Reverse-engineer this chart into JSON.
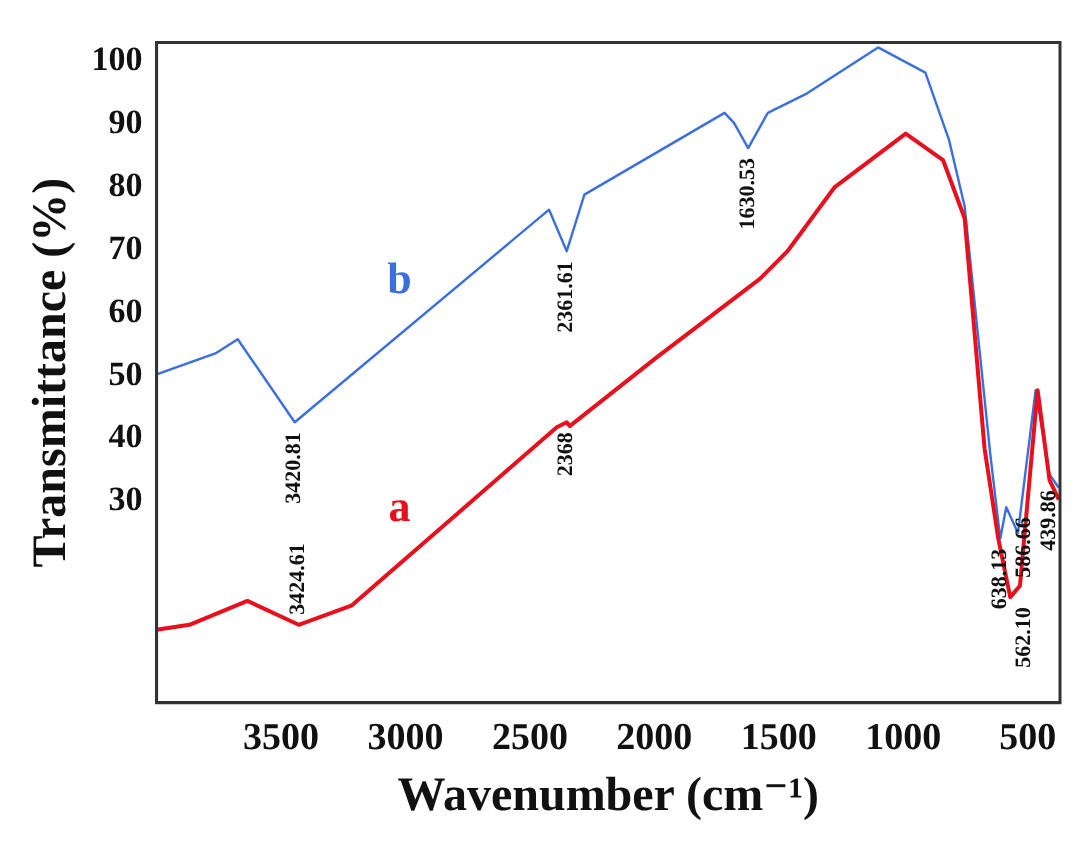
{
  "chart_data": {
    "type": "line",
    "xlabel": "Wavenumber (cm⁻¹)",
    "ylabel": "Transmittance (%)",
    "xlim": [
      4000,
      370
    ],
    "xticks": [
      3500,
      3000,
      2500,
      2000,
      1500,
      1000,
      500
    ],
    "ylim": [
      -2,
      103
    ],
    "yticks": [
      30,
      40,
      50,
      60,
      70,
      80,
      90,
      100
    ],
    "grid": false,
    "legend": false,
    "marker": "none",
    "line_style": "solid",
    "series": [
      {
        "name": "a",
        "color": "#e8101c",
        "x": [
          4000,
          3868,
          3635,
          3429,
          3215,
          2392,
          2352,
          2340,
          1988,
          1576,
          1465,
          1275,
          990,
          840,
          753,
          673,
          618,
          570,
          531,
          460,
          412,
          375
        ],
        "values": [
          9.6,
          10.4,
          14.2,
          10.4,
          13.5,
          41.8,
          42.6,
          42,
          53,
          65.4,
          69.8,
          80,
          88.5,
          84.3,
          75,
          38.4,
          24.1,
          14.8,
          16.6,
          47.7,
          33.4,
          30.3
        ]
      },
      {
        "name": "b",
        "color": "#3a6fe0",
        "x": [
          4000,
          3761,
          3674,
          3445,
          2423,
          2352,
          2281,
          1718,
          1680,
          1623,
          1544,
          1386,
          1101,
          911,
          816,
          753,
          650,
          610,
          586,
          539,
          468,
          412,
          375
        ],
        "values": [
          50.2,
          53.6,
          55.8,
          42.6,
          76.4,
          69.8,
          78.8,
          91.8,
          90.2,
          86.2,
          91.8,
          94.9,
          102.2,
          98.2,
          87.5,
          76.9,
          37.5,
          24.1,
          29.1,
          25,
          47.7,
          34.3,
          32.2
        ]
      }
    ],
    "annotations": [
      {
        "text": "3420.81",
        "x": 3445,
        "y": 42.6
      },
      {
        "text": "3424.61",
        "x": 3429,
        "y": 10.4
      },
      {
        "text": "2368",
        "x": 2352,
        "y": 42.6
      },
      {
        "text": "2361.61",
        "x": 2352,
        "y": 69.8
      },
      {
        "text": "1630.53",
        "x": 1623,
        "y": 86.2
      },
      {
        "text": "638.13",
        "x": 610,
        "y": 24.1
      },
      {
        "text": "562.10",
        "x": 570,
        "y": 14.8
      },
      {
        "text": "586.66",
        "x": 586,
        "y": 29.1
      },
      {
        "text": "439.86",
        "x": 412,
        "y": 33.4
      }
    ]
  }
}
